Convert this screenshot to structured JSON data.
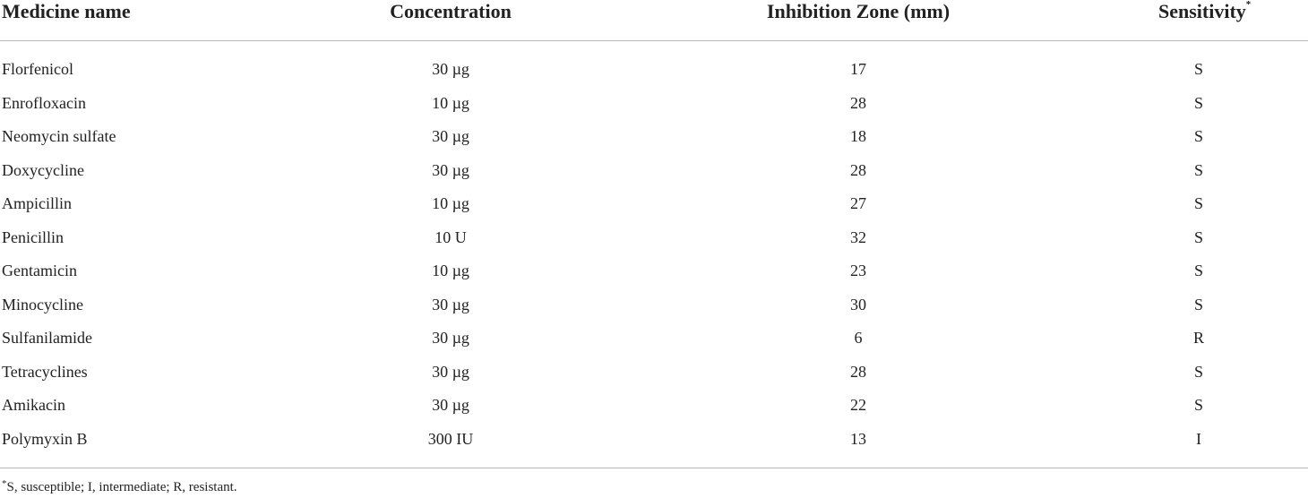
{
  "table": {
    "header": [
      "Medicine name",
      "Concentration",
      "Inhibition Zone (mm)",
      "Sensitivity"
    ],
    "header_marker": "*",
    "rows": [
      [
        "Florfenicol",
        "30 µg",
        "17",
        "S"
      ],
      [
        "Enrofloxacin",
        "10 µg",
        "28",
        "S"
      ],
      [
        "Neomycin sulfate",
        "30 µg",
        "18",
        "S"
      ],
      [
        "Doxycycline",
        "30 µg",
        "28",
        "S"
      ],
      [
        "Ampicillin",
        "10 µg",
        "27",
        "S"
      ],
      [
        "Penicillin",
        "10 U",
        "32",
        "S"
      ],
      [
        "Gentamicin",
        "10 µg",
        "23",
        "S"
      ],
      [
        "Minocycline",
        "30 µg",
        "30",
        "S"
      ],
      [
        "Sulfanilamide",
        "30 µg",
        "6",
        "R"
      ],
      [
        "Tetracyclines",
        "30 µg",
        "28",
        "S"
      ],
      [
        "Amikacin",
        "30 µg",
        "22",
        "S"
      ],
      [
        "Polymyxin B",
        "300 IU",
        "13",
        "I"
      ]
    ],
    "footnote_marker": "*",
    "footnote": "S, susceptible; I, intermediate; R, resistant."
  }
}
